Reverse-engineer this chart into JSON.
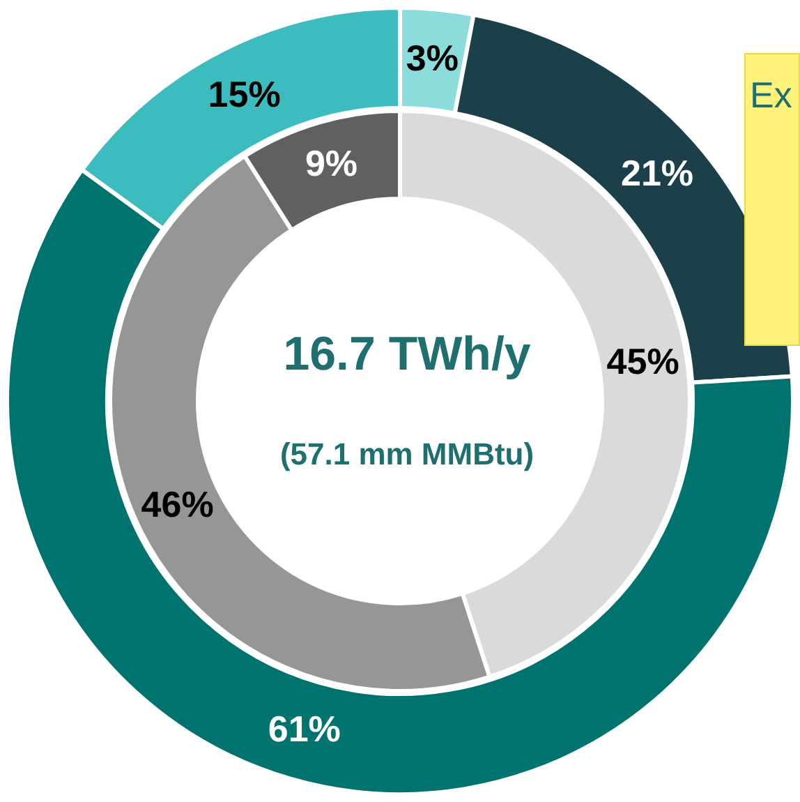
{
  "chart_data": {
    "type": "donut",
    "title": "16.7 TWh/y",
    "subtitle": "(57.1 mm MMBtu)",
    "annotations": [
      "Ex"
    ],
    "series": [
      {
        "values": [
          3,
          21,
          61,
          15
        ],
        "colors": [
          "#8ddcdc",
          "#1b404a",
          "#00736f",
          "#3cbcbe"
        ],
        "value_labels": [
          "3%",
          "21%",
          "61%",
          "15%"
        ]
      },
      {
        "values": [
          45,
          46,
          9
        ],
        "colors": [
          "#dadada",
          "#969696",
          "#606060"
        ],
        "value_labels": [
          "45%",
          "46%",
          "9%"
        ]
      }
    ]
  }
}
